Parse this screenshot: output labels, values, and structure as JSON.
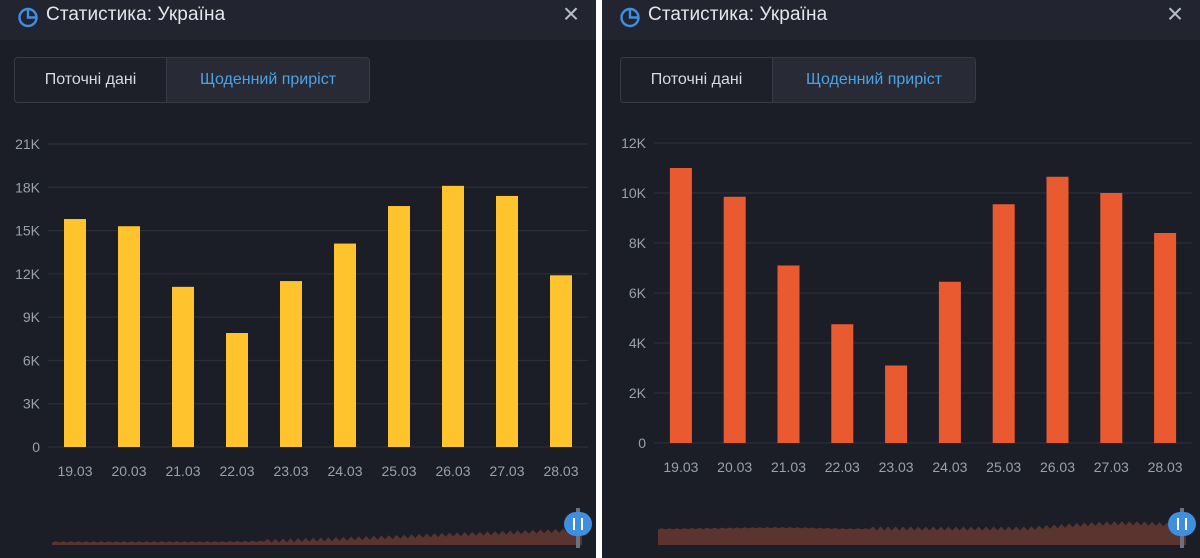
{
  "colors": {
    "yellow_bar": "#ffc42d",
    "red_bar": "#e95a31",
    "accent_blue": "#3f8fe0",
    "panel_bg": "#1b1e27"
  },
  "panels": [
    {
      "title": "Статистика: Україна",
      "icon": "pie-chart-icon",
      "close_label": "×",
      "tabs": [
        "Поточні дані",
        "Щоденний приріст"
      ],
      "active_tab": 1
    },
    {
      "title": "Статистика: Україна",
      "icon": "pie-chart-icon",
      "close_label": "×",
      "tabs": [
        "Поточні дані",
        "Щоденний приріст"
      ],
      "active_tab": 1
    }
  ],
  "chart_data": [
    {
      "type": "bar",
      "color": "#ffc42d",
      "categories": [
        "19.03",
        "20.03",
        "21.03",
        "22.03",
        "23.03",
        "24.03",
        "25.03",
        "26.03",
        "27.03",
        "28.03"
      ],
      "values": [
        15800,
        15300,
        11100,
        7900,
        11500,
        14100,
        16700,
        18100,
        17400,
        11900
      ],
      "ylim": [
        0,
        21000
      ],
      "yticks": [
        0,
        3000,
        6000,
        9000,
        12000,
        15000,
        18000,
        21000
      ],
      "ytick_labels": [
        "0",
        "3K",
        "6K",
        "9K",
        "12K",
        "15K",
        "18K",
        "21K"
      ],
      "grid": true,
      "title": "",
      "xlabel": "",
      "ylabel": ""
    },
    {
      "type": "bar",
      "color": "#e95a31",
      "categories": [
        "19.03",
        "20.03",
        "21.03",
        "22.03",
        "23.03",
        "24.03",
        "25.03",
        "26.03",
        "27.03",
        "28.03"
      ],
      "values": [
        11000,
        9850,
        7100,
        4750,
        3100,
        6450,
        9550,
        10650,
        10000,
        8400
      ],
      "ylim": [
        0,
        12000
      ],
      "yticks": [
        0,
        2000,
        4000,
        6000,
        8000,
        10000,
        12000
      ],
      "ytick_labels": [
        "0",
        "2K",
        "4K",
        "6K",
        "8K",
        "10K",
        "12K"
      ],
      "grid": true,
      "title": "",
      "xlabel": "",
      "ylabel": ""
    }
  ]
}
